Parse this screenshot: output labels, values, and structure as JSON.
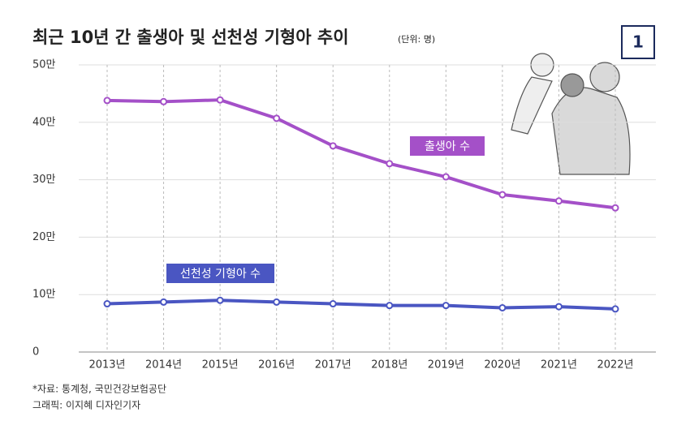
{
  "chart_data": {
    "type": "line",
    "title": "최근 10년 간 출생아 및 선천성 기형아 추이",
    "subtitle": "(단위: 명)",
    "badge": "1",
    "categories": [
      "2013년",
      "2014년",
      "2015년",
      "2016년",
      "2017년",
      "2018년",
      "2019년",
      "2020년",
      "2021년",
      "2022년"
    ],
    "series": [
      {
        "name": "출생아 수",
        "color": "#a450c8",
        "values": [
          43.8,
          43.6,
          43.9,
          40.7,
          35.9,
          32.8,
          30.5,
          27.4,
          26.3,
          25.1
        ]
      },
      {
        "name": "선천성 기형아 수",
        "color": "#4a56c2",
        "values": [
          8.4,
          8.7,
          9.0,
          8.7,
          8.4,
          8.1,
          8.1,
          7.7,
          7.9,
          7.5
        ]
      }
    ],
    "ylim": [
      0,
      50
    ],
    "yticks": [
      0,
      {
        "value": 10,
        "label": "10만"
      },
      {
        "value": 20,
        "label": "20만"
      },
      {
        "value": 30,
        "label": "30만"
      },
      {
        "value": 40,
        "label": "40만"
      },
      {
        "value": 50,
        "label": "50만"
      }
    ],
    "grid": true,
    "source": "*자료: 통계청, 국민건강보험공단",
    "credit": "그래픽: 이지혜 디자인기자"
  }
}
